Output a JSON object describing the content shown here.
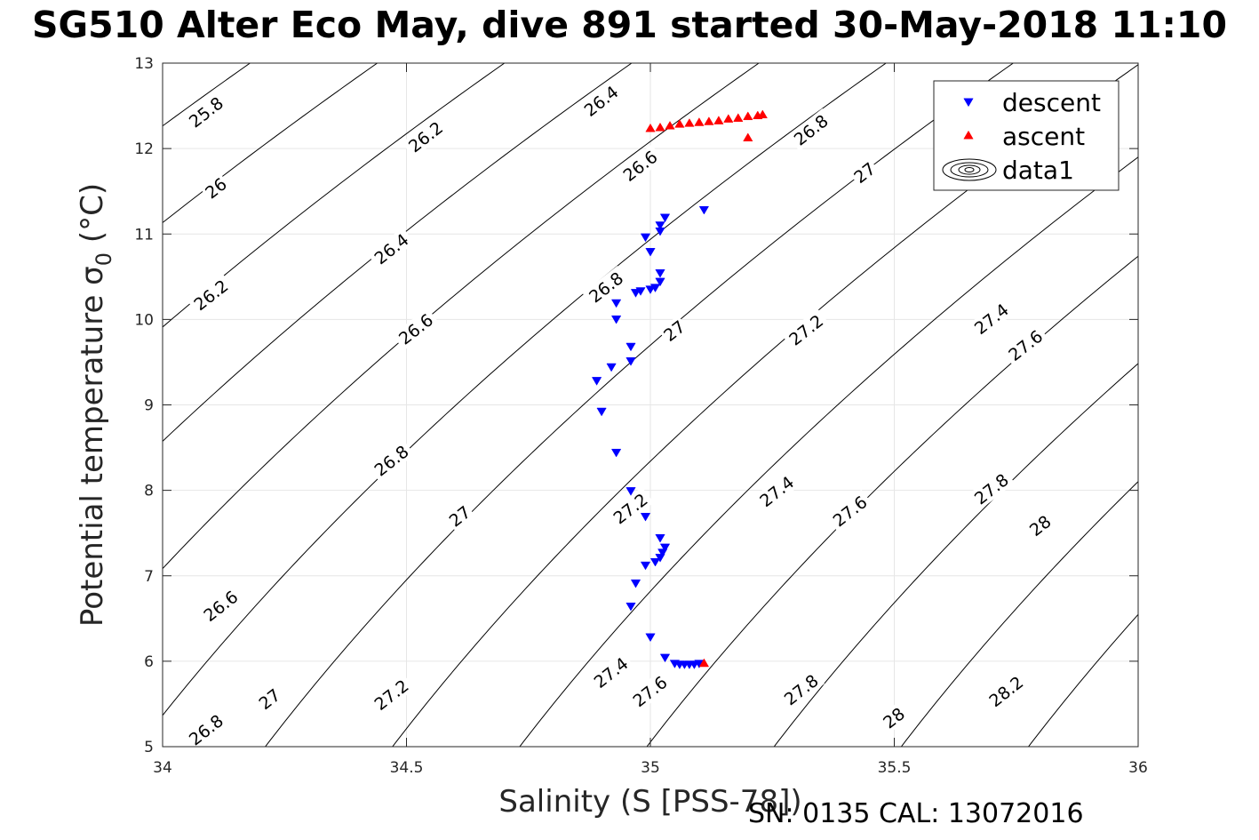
{
  "title": "SG510 Alter Eco May, dive 891 started 30-May-2018 11:10",
  "footer": "SN: 0135  CAL: 13072016",
  "chart_data": {
    "type": "scatter",
    "title": "SG510 Alter Eco May, dive 891 started 30-May-2018 11:10",
    "xlabel": "Salinity (S [PSS-78])",
    "ylabel": "Potential temperature σ₀ (°C)",
    "ylabel_parts": {
      "main": "Potential temperature σ",
      "sub": "0",
      "tail": " (°C)"
    },
    "xlim": [
      34,
      36
    ],
    "ylim": [
      5,
      13
    ],
    "xticks": [
      "34",
      "34.5",
      "35",
      "35.5",
      "36"
    ],
    "yticks": [
      "5",
      "6",
      "7",
      "8",
      "9",
      "10",
      "11",
      "12",
      "13"
    ],
    "grid": true,
    "legend": {
      "placement": "top-right",
      "entries": [
        "descent",
        "ascent",
        "data1"
      ]
    },
    "colors": {
      "descent": "#0000ff",
      "ascent": "#ff0000",
      "contour": "#000000",
      "grid": "#e6e6e6"
    },
    "series": [
      {
        "name": "descent",
        "marker": "triangle-down",
        "x": [
          35.11,
          35.03,
          35.02,
          35.02,
          34.99,
          35.0,
          35.02,
          35.02,
          35.01,
          35.0,
          34.98,
          34.97,
          34.93,
          34.93,
          34.96,
          34.96,
          34.92,
          34.89,
          34.9,
          34.93,
          34.96,
          34.99,
          35.02,
          35.03,
          35.025,
          35.02,
          35.01,
          34.99,
          34.97,
          34.96,
          35.0,
          35.03,
          35.05,
          35.06,
          35.07,
          35.08,
          35.09,
          35.1
        ],
        "y": [
          11.28,
          11.19,
          11.1,
          11.03,
          10.96,
          10.79,
          10.54,
          10.44,
          10.37,
          10.35,
          10.33,
          10.31,
          10.19,
          10.0,
          9.68,
          9.51,
          9.44,
          9.28,
          8.92,
          8.44,
          7.99,
          7.69,
          7.44,
          7.33,
          7.27,
          7.21,
          7.16,
          7.12,
          6.91,
          6.64,
          6.28,
          6.04,
          5.97,
          5.96,
          5.96,
          5.96,
          5.96,
          5.97
        ]
      },
      {
        "name": "ascent",
        "marker": "triangle-up",
        "x": [
          35.11,
          35.0,
          35.02,
          35.04,
          35.06,
          35.08,
          35.1,
          35.12,
          35.14,
          35.16,
          35.18,
          35.2,
          35.22,
          35.23,
          35.2
        ],
        "y": [
          5.98,
          12.24,
          12.25,
          12.27,
          12.29,
          12.3,
          12.31,
          12.32,
          12.33,
          12.35,
          12.36,
          12.38,
          12.39,
          12.4,
          12.13
        ]
      }
    ],
    "contour_levels": [
      25.8,
      26.0,
      26.2,
      26.4,
      26.6,
      26.8,
      27.0,
      27.2,
      27.4,
      27.6,
      27.8,
      28.0,
      28.2
    ],
    "contour_label_texts": [
      "25.8",
      "26",
      "26.2",
      "26.4",
      "26.6",
      "26.8",
      "27",
      "27.2",
      "27.4",
      "27.6",
      "27.8",
      "28",
      "28.2"
    ],
    "contour_labels": [
      {
        "text": "25.8",
        "x": 34.09,
        "y": 12.42
      },
      {
        "text": "26",
        "x": 34.11,
        "y": 11.53
      },
      {
        "text": "26.2",
        "x": 34.1,
        "y": 10.28
      },
      {
        "text": "26.2",
        "x": 34.54,
        "y": 12.13
      },
      {
        "text": "26.4",
        "x": 34.47,
        "y": 10.82
      },
      {
        "text": "26.4",
        "x": 34.9,
        "y": 12.55
      },
      {
        "text": "26.6",
        "x": 34.12,
        "y": 6.64
      },
      {
        "text": "26.6",
        "x": 34.52,
        "y": 9.88
      },
      {
        "text": "26.6",
        "x": 34.98,
        "y": 11.79
      },
      {
        "text": "26.8",
        "x": 34.09,
        "y": 5.19
      },
      {
        "text": "26.8",
        "x": 34.47,
        "y": 8.34
      },
      {
        "text": "26.8",
        "x": 34.91,
        "y": 10.37
      },
      {
        "text": "26.8",
        "x": 35.33,
        "y": 12.21
      },
      {
        "text": "27",
        "x": 34.22,
        "y": 5.55
      },
      {
        "text": "27",
        "x": 34.61,
        "y": 7.69
      },
      {
        "text": "27",
        "x": 35.05,
        "y": 9.86
      },
      {
        "text": "27",
        "x": 35.44,
        "y": 11.71
      },
      {
        "text": "27.2",
        "x": 34.47,
        "y": 5.6
      },
      {
        "text": "27.2",
        "x": 34.96,
        "y": 7.78
      },
      {
        "text": "27.2",
        "x": 35.32,
        "y": 9.87
      },
      {
        "text": "27.4",
        "x": 34.92,
        "y": 5.86
      },
      {
        "text": "27.4",
        "x": 35.26,
        "y": 7.98
      },
      {
        "text": "27.4",
        "x": 35.7,
        "y": 10.0
      },
      {
        "text": "27.6",
        "x": 35.0,
        "y": 5.64
      },
      {
        "text": "27.6",
        "x": 35.41,
        "y": 7.75
      },
      {
        "text": "27.6",
        "x": 35.77,
        "y": 9.69
      },
      {
        "text": "27.8",
        "x": 35.31,
        "y": 5.66
      },
      {
        "text": "27.8",
        "x": 35.7,
        "y": 8.01
      },
      {
        "text": "28",
        "x": 35.5,
        "y": 5.33
      },
      {
        "text": "28",
        "x": 35.8,
        "y": 7.58
      },
      {
        "text": "28.2",
        "x": 35.73,
        "y": 5.64
      }
    ]
  }
}
